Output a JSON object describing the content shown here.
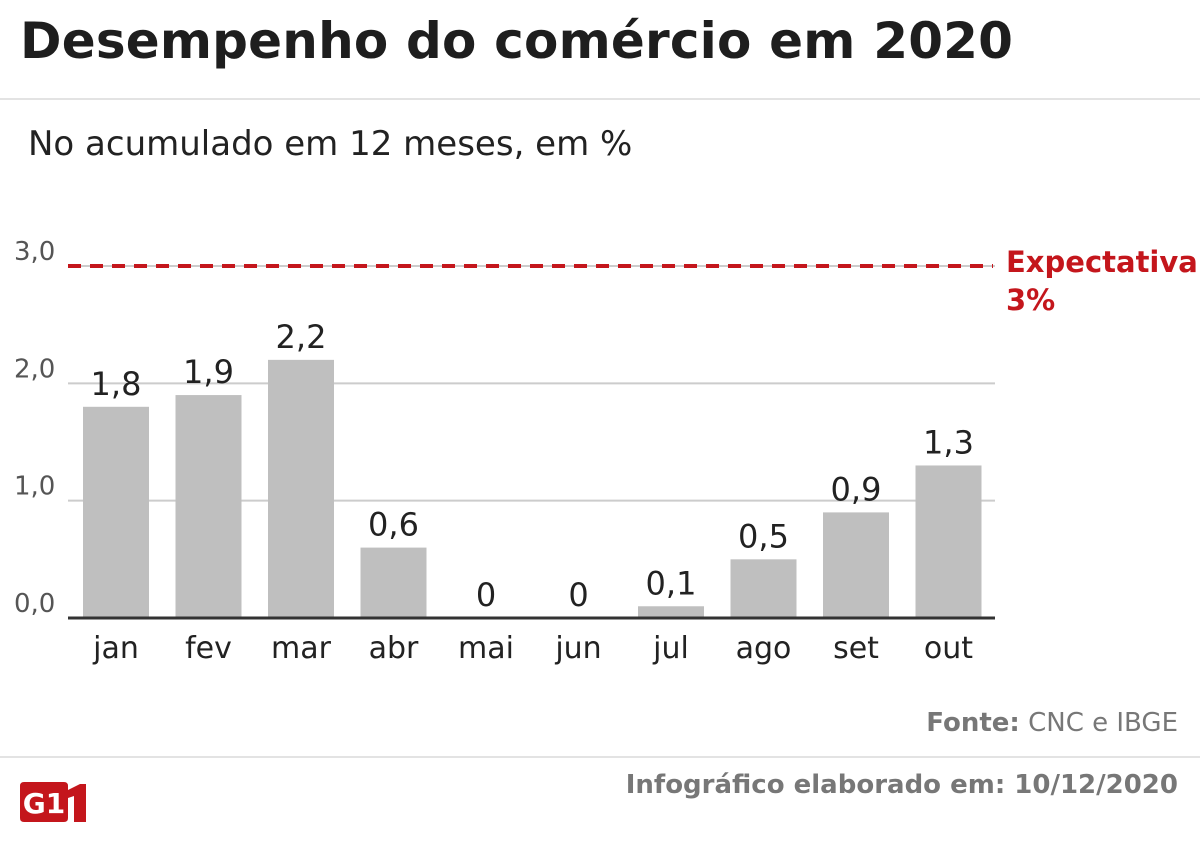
{
  "header": {
    "title": "Desempenho do comércio em 2020",
    "subtitle": "No acumulado em 12 meses, em %"
  },
  "footer": {
    "source_label": "Fonte:",
    "source_text": "CNC e IBGE",
    "credit": "Infográfico elaborado em: 10/12/2020",
    "logo_text": "G1"
  },
  "colors": {
    "bar": "#bfbfbf",
    "expectation": "#c4161c",
    "grid": "#cccccc",
    "axis": "#333333",
    "logo": "#c4161c"
  },
  "chart_data": {
    "type": "bar",
    "categories": [
      "jan",
      "fev",
      "mar",
      "abr",
      "mai",
      "jun",
      "jul",
      "ago",
      "set",
      "out"
    ],
    "values": [
      1.8,
      1.9,
      2.2,
      0.6,
      0,
      0,
      0.1,
      0.5,
      0.9,
      1.3
    ],
    "value_labels": [
      "1,8",
      "1,9",
      "2,2",
      "0,6",
      "0",
      "0",
      "0,1",
      "0,5",
      "0,9",
      "1,3"
    ],
    "ylim": [
      0,
      3
    ],
    "yticks": [
      0,
      1,
      2,
      3
    ],
    "ytick_labels": [
      "0,0",
      "1,0",
      "2,0",
      "3,0"
    ],
    "grid": true,
    "reference_line": {
      "value": 3,
      "label_line1": "Expectativa",
      "label_line2": "3%"
    }
  }
}
